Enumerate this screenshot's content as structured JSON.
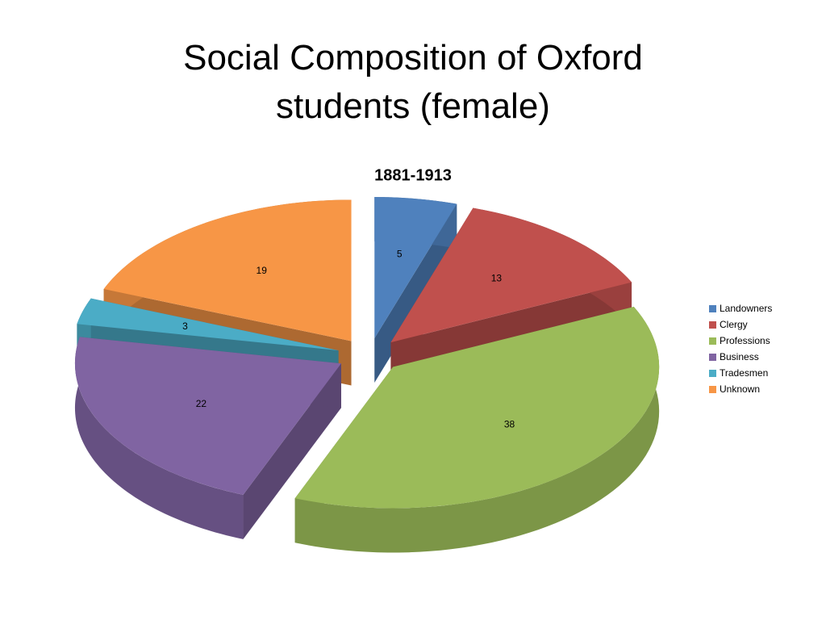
{
  "slide_title": "Social Composition of Oxford students (female)",
  "chart_data": {
    "type": "pie",
    "title": "1881-1913",
    "categories": [
      "Landowners",
      "Clergy",
      "Professions",
      "Business",
      "Tradesmen",
      "Unknown"
    ],
    "values": [
      5,
      13,
      38,
      22,
      3,
      19
    ],
    "colors": [
      "#4F81BD",
      "#C0504D",
      "#9BBB59",
      "#8064A2",
      "#4BACC6",
      "#F79646"
    ],
    "legend": "right"
  }
}
